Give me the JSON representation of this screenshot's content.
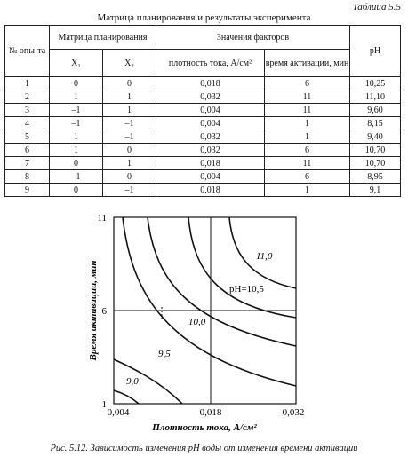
{
  "table_label": "Таблица 5.5",
  "table": {
    "title": "Матрица планирования и результаты эксперимента",
    "header": {
      "number": "№ опы-та",
      "matrix": "Матрица планирования",
      "factors": "Значения факторов",
      "ph": "pH",
      "x1": "X₁",
      "x2": "X₂",
      "density": "плотность тока, А/см²",
      "time": "время активации, мин"
    },
    "rows": [
      [
        "1",
        "0",
        "0",
        "0,018",
        "6",
        "10,25"
      ],
      [
        "2",
        "1",
        "1",
        "0,032",
        "11",
        "11,10"
      ],
      [
        "3",
        "–1",
        "1",
        "0,004",
        "11",
        "9,60"
      ],
      [
        "4",
        "–1",
        "–1",
        "0,004",
        "1",
        "8,15"
      ],
      [
        "5",
        "1",
        "–1",
        "0,032",
        "1",
        "9,40"
      ],
      [
        "6",
        "1",
        "0",
        "0,032",
        "6",
        "10,70"
      ],
      [
        "7",
        "0",
        "1",
        "0,018",
        "11",
        "10,70"
      ],
      [
        "8",
        "–1",
        "0",
        "0,004",
        "6",
        "8,95"
      ],
      [
        "9",
        "0",
        "–1",
        "0,018",
        "1",
        "9,1"
      ]
    ]
  },
  "figure": {
    "y_axis_title": "Время активации, мин",
    "x_axis_title": "Плотность тока, А/см²",
    "x_ticks": [
      "0,004",
      "0,018",
      "0,032"
    ],
    "y_ticks": [
      "11",
      "6",
      "1"
    ],
    "contour_labels": [
      "9,0",
      "9,5",
      "10,0",
      "pH=10,5",
      "11,0"
    ],
    "caption": "Рис. 5.12. Зависимость изменения pH воды от изменения времени активации"
  }
}
